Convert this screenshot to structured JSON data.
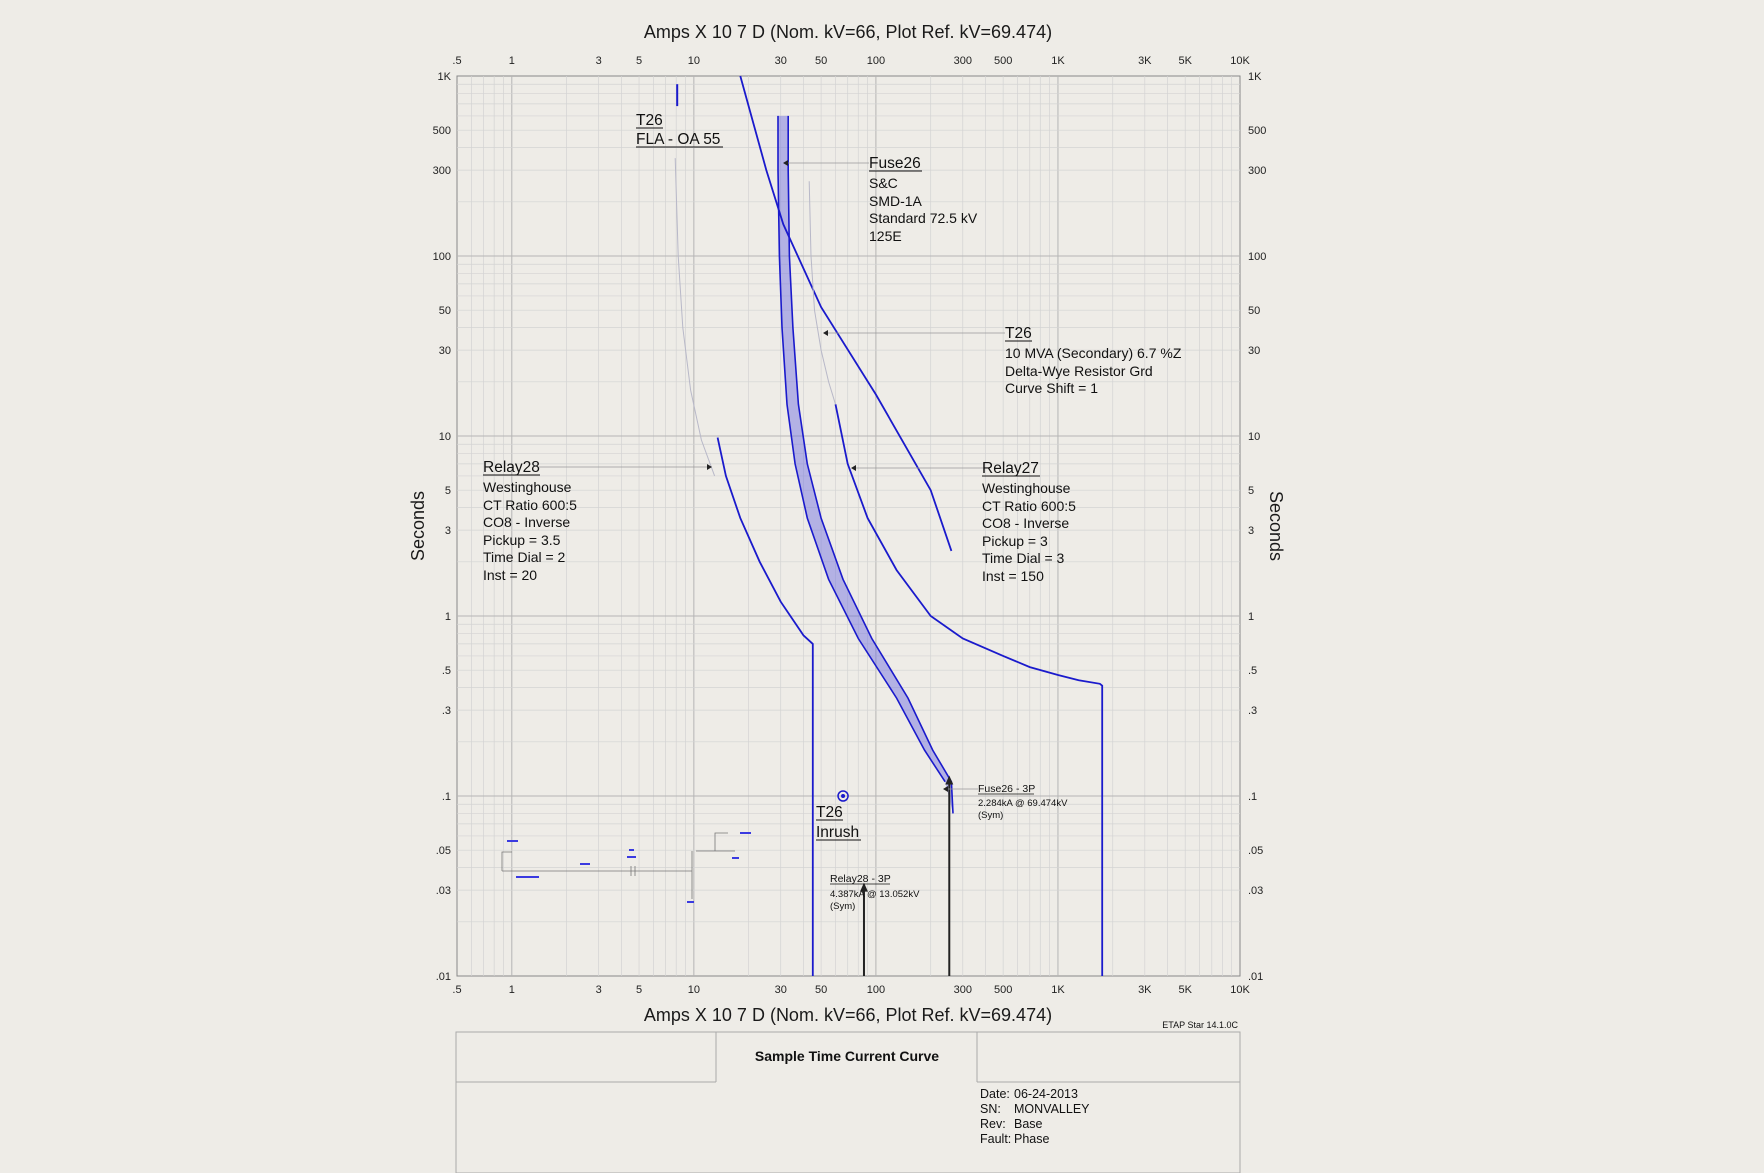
{
  "chart_data": {
    "type": "line",
    "xlabel_top": "Amps  X  10   7 D (Nom. kV=66, Plot Ref. kV=69.474)",
    "xlabel_bottom": "Amps  X  10   7 D (Nom. kV=66, Plot Ref. kV=69.474)",
    "ylabel": "Seconds",
    "xscale": "log",
    "yscale": "log",
    "xlim": [
      0.5,
      10000
    ],
    "ylim": [
      0.01,
      1000
    ],
    "grid": true,
    "x_ticks": [
      {
        "v": 0.5,
        "label": ".5"
      },
      {
        "v": 1,
        "label": "1"
      },
      {
        "v": 3,
        "label": "3"
      },
      {
        "v": 5,
        "label": "5"
      },
      {
        "v": 10,
        "label": "10"
      },
      {
        "v": 30,
        "label": "30"
      },
      {
        "v": 50,
        "label": "50"
      },
      {
        "v": 100,
        "label": "100"
      },
      {
        "v": 300,
        "label": "300"
      },
      {
        "v": 500,
        "label": "500"
      },
      {
        "v": 1000,
        "label": "1K"
      },
      {
        "v": 3000,
        "label": "3K"
      },
      {
        "v": 5000,
        "label": "5K"
      },
      {
        "v": 10000,
        "label": "10K"
      }
    ],
    "y_ticks": [
      {
        "v": 0.01,
        "label": ".01"
      },
      {
        "v": 0.03,
        "label": ".03"
      },
      {
        "v": 0.05,
        "label": ".05"
      },
      {
        "v": 0.1,
        "label": ".1"
      },
      {
        "v": 0.3,
        "label": ".3"
      },
      {
        "v": 0.5,
        "label": ".5"
      },
      {
        "v": 1,
        "label": "1"
      },
      {
        "v": 3,
        "label": "3"
      },
      {
        "v": 5,
        "label": "5"
      },
      {
        "v": 10,
        "label": "10"
      },
      {
        "v": 30,
        "label": "30"
      },
      {
        "v": 50,
        "label": "50"
      },
      {
        "v": 100,
        "label": "100"
      },
      {
        "v": 300,
        "label": "300"
      },
      {
        "v": 500,
        "label": "500"
      },
      {
        "v": 1000,
        "label": "1K"
      }
    ],
    "series": [
      {
        "key": "relay28",
        "color": "#1a1acc",
        "points": [
          [
            13.5,
            9.8
          ],
          [
            15,
            6
          ],
          [
            18,
            3.5
          ],
          [
            23,
            2.0
          ],
          [
            30,
            1.2
          ],
          [
            40,
            0.78
          ],
          [
            45,
            0.7
          ],
          [
            45,
            0.01
          ]
        ]
      },
      {
        "key": "relay27",
        "color": "#1a1acc",
        "points": [
          [
            60,
            15
          ],
          [
            70,
            7
          ],
          [
            90,
            3.5
          ],
          [
            130,
            1.8
          ],
          [
            200,
            1.0
          ],
          [
            300,
            0.75
          ],
          [
            500,
            0.6
          ],
          [
            700,
            0.52
          ],
          [
            1000,
            0.47
          ],
          [
            1300,
            0.44
          ],
          [
            1700,
            0.42
          ],
          [
            1750,
            0.41
          ],
          [
            1750,
            0.01
          ]
        ]
      },
      {
        "key": "t26_damage",
        "color": "#1a1acc",
        "points": [
          [
            18,
            1000
          ],
          [
            25,
            300
          ],
          [
            31,
            150
          ],
          [
            50,
            52
          ],
          [
            100,
            17
          ],
          [
            200,
            5.0
          ],
          [
            260,
            2.3
          ]
        ]
      },
      {
        "key": "fuse26_min",
        "color": "#1a1acc",
        "points": [
          [
            29,
            600
          ],
          [
            29,
            300
          ],
          [
            29.5,
            100
          ],
          [
            30.5,
            40
          ],
          [
            32.5,
            15
          ],
          [
            36,
            7
          ],
          [
            42,
            3.5
          ],
          [
            55,
            1.6
          ],
          [
            80,
            0.75
          ],
          [
            130,
            0.35
          ],
          [
            185,
            0.18
          ],
          [
            240,
            0.12
          ]
        ]
      },
      {
        "key": "fuse26_max",
        "color": "#1a1acc",
        "points": [
          [
            33,
            600
          ],
          [
            33,
            300
          ],
          [
            33.5,
            100
          ],
          [
            35,
            40
          ],
          [
            37.5,
            15
          ],
          [
            42,
            7
          ],
          [
            50,
            3.5
          ],
          [
            66,
            1.6
          ],
          [
            95,
            0.75
          ],
          [
            150,
            0.35
          ],
          [
            205,
            0.18
          ],
          [
            260,
            0.12
          ],
          [
            265,
            0.08
          ]
        ]
      },
      {
        "key": "t26_fla",
        "color": "#1a1acc",
        "points": [
          [
            8.1,
            900
          ],
          [
            8.1,
            680
          ]
        ]
      },
      {
        "key": "t26_thermal",
        "color": "#b8b8c8",
        "points": [
          [
            7.9,
            350
          ],
          [
            8.2,
            100
          ],
          [
            8.7,
            40
          ],
          [
            9.6,
            18
          ],
          [
            11,
            9.5
          ],
          [
            13,
            6
          ]
        ]
      },
      {
        "key": "t26_thermal_2",
        "color": "#b8b8c8",
        "points": [
          [
            43,
            260
          ],
          [
            44,
            100
          ],
          [
            46,
            50
          ],
          [
            50,
            30
          ],
          [
            55,
            20
          ],
          [
            60,
            15
          ]
        ]
      }
    ],
    "fault_arrows": [
      {
        "key": "relay28_3p",
        "x": 86,
        "y_top": 0.033,
        "color": "#222"
      },
      {
        "key": "fuse26_3p",
        "x": 253,
        "y_top": 0.13,
        "color": "#222"
      }
    ],
    "inrush_point": {
      "x": 66,
      "y": 0.1
    },
    "annotations": {
      "t26_fla": {
        "l1": "T26",
        "l2": "FLA - OA 55"
      },
      "fuse26": {
        "l1": "Fuse26",
        "l2": "S&C",
        "l3": "SMD-1A",
        "l4": "Standard  72.5 kV",
        "l5": "125E"
      },
      "t26": {
        "l1": "T26",
        "l2": "10 MVA (Secondary)  6.7 %Z",
        "l3": "Delta-Wye Resistor Grd",
        "l4": "Curve Shift = 1"
      },
      "relay28": {
        "l1": "Relay28",
        "l2": "Westinghouse",
        "l3": "CT Ratio 600:5",
        "l4": "CO8 - Inverse",
        "l5": "Pickup = 3.5",
        "l6": "Time Dial = 2",
        "l7": "Inst = 20"
      },
      "relay27": {
        "l1": "Relay27",
        "l2": "Westinghouse",
        "l3": "CT Ratio 600:5",
        "l4": "CO8 - Inverse",
        "l5": "Pickup = 3",
        "l6": "Time Dial = 3",
        "l7": "Inst = 150"
      },
      "t26_inrush": {
        "l1": "T26",
        "l2": "Inrush"
      },
      "fuse26_3p": {
        "l1": "Fuse26 - 3P",
        "l2": "2.284kA @ 69.474kV",
        "l3": "(Sym)"
      },
      "relay28_3p": {
        "l1": "Relay28 - 3P",
        "l2": "4.387kA @ 13.052kV",
        "l3": "(Sym)"
      }
    }
  },
  "title_block": {
    "version": "ETAP Star 14.1.0C",
    "title": "Sample Time Current Curve",
    "date_label": "Date:",
    "date_value": "06-24-2013",
    "sn_label": "SN:",
    "sn_value": "MONVALLEY",
    "rev_label": "Rev:",
    "rev_value": "Base",
    "fault_label": "Fault:",
    "fault_value": "Phase"
  }
}
